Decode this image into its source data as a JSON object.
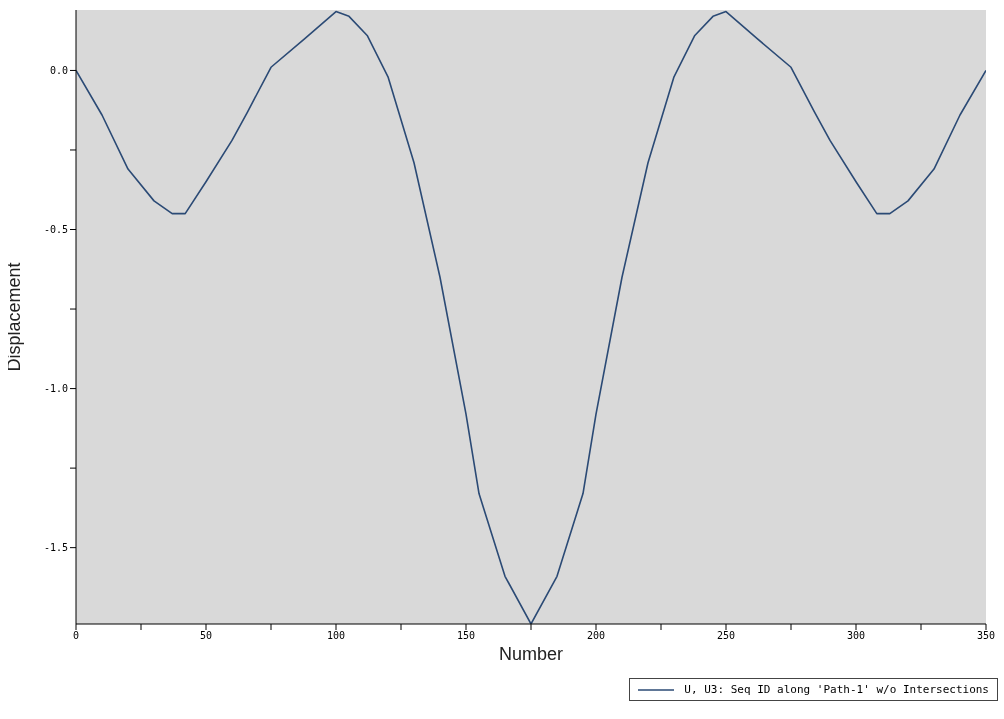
{
  "chart_data": {
    "type": "line",
    "xlabel": "Number",
    "ylabel": "Displacement",
    "x": [
      0,
      10,
      20,
      30,
      37,
      42,
      50,
      60,
      66,
      75,
      88,
      100,
      105,
      112,
      120,
      130,
      140,
      150,
      155,
      165,
      175,
      185,
      195,
      200,
      210,
      220,
      230,
      238,
      245,
      250,
      262,
      275,
      284,
      290,
      300,
      308,
      313,
      320,
      330,
      340,
      350
    ],
    "series": [
      {
        "name": "U, U3: Seq ID along 'Path-1' w/o Intersections",
        "color": "#2b4a75",
        "values": [
          0,
          -0.14,
          -0.31,
          -0.41,
          -0.45,
          -0.45,
          -0.35,
          -0.22,
          -0.13,
          0.01,
          0.1,
          0.185,
          0.17,
          0.11,
          -0.02,
          -0.29,
          -0.65,
          -1.08,
          -1.33,
          -1.59,
          -1.74,
          -1.59,
          -1.33,
          -1.08,
          -0.65,
          -0.29,
          -0.02,
          0.11,
          0.17,
          0.185,
          0.1,
          0.01,
          -0.13,
          -0.22,
          -0.35,
          -0.45,
          -0.45,
          -0.41,
          -0.31,
          -0.14,
          0
        ]
      }
    ],
    "xlim": [
      0,
      350
    ],
    "xticks": [
      0,
      {
        "value": 25,
        "label": null
      },
      50,
      {
        "value": 75,
        "label": null
      },
      100,
      {
        "value": 125,
        "label": null
      },
      150,
      {
        "value": 175,
        "label": null
      },
      200,
      {
        "value": 225,
        "label": null
      },
      250,
      {
        "value": 275,
        "label": null
      },
      300,
      {
        "value": 325,
        "label": null
      },
      350
    ],
    "ylim": [
      -1.74,
      0.19
    ],
    "yticks": [
      {
        "value": -1.5,
        "label": "-1.5"
      },
      {
        "value": -1.25,
        "label": null
      },
      {
        "value": -1,
        "label": "-1.0"
      },
      {
        "value": -0.75,
        "label": null
      },
      {
        "value": -0.5,
        "label": "-0.5"
      },
      {
        "value": -0.25,
        "label": null
      },
      {
        "value": 0,
        "label": "0.0"
      }
    ],
    "grid": false,
    "legend": "bottom right",
    "marker": "none",
    "line_style": "solid"
  }
}
